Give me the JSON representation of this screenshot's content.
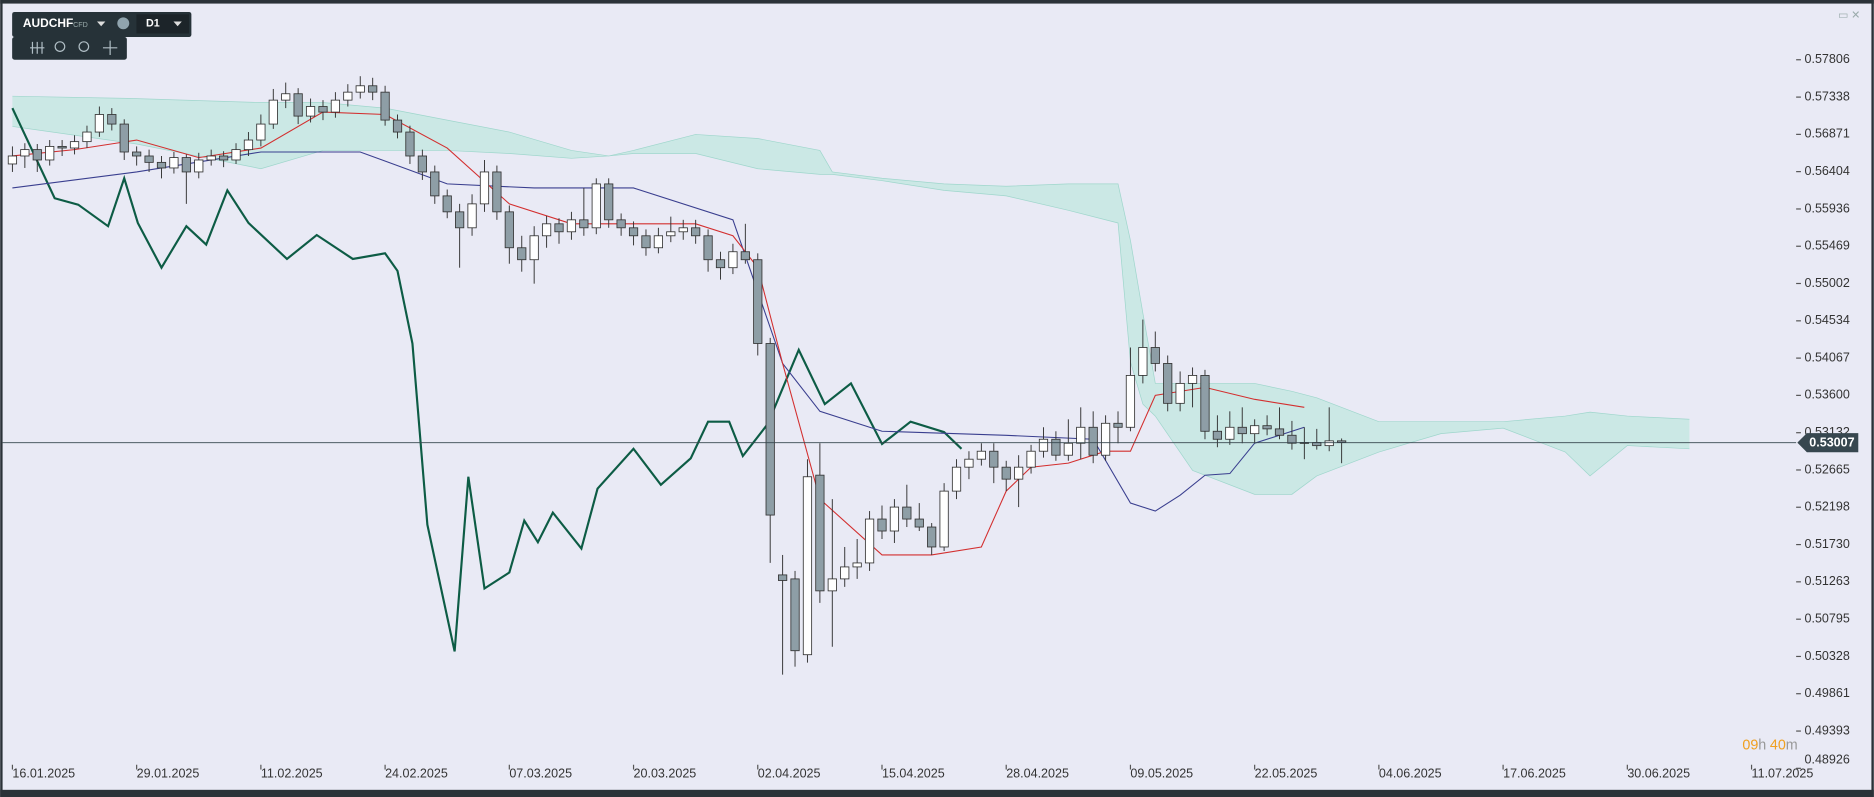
{
  "toolbar": {
    "symbol": "AUDCHF",
    "market": "CFD",
    "timeframe": "D1"
  },
  "timer": {
    "hours": "09",
    "hours_unit": "h",
    "minutes": "40",
    "minutes_unit": "m"
  },
  "chart_data": {
    "type": "candlestick",
    "up_color": "#ffffff",
    "down_color": "#8e9ea6",
    "xlim": [
      -0.6,
      143.3
    ],
    "xticks": [
      {
        "value": 0,
        "label": "16.01.2025"
      },
      {
        "value": 10,
        "label": "29.01.2025"
      },
      {
        "value": 20,
        "label": "11.02.2025"
      },
      {
        "value": 30,
        "label": "24.02.2025"
      },
      {
        "value": 40,
        "label": "07.03.2025"
      },
      {
        "value": 50,
        "label": "20.03.2025"
      },
      {
        "value": 60,
        "label": "02.04.2025"
      },
      {
        "value": 70,
        "label": "15.04.2025"
      },
      {
        "value": 80,
        "label": "28.04.2025"
      },
      {
        "value": 90,
        "label": "09.05.2025"
      },
      {
        "value": 100,
        "label": "22.05.2025"
      },
      {
        "value": 110,
        "label": "04.06.2025"
      },
      {
        "value": 120,
        "label": "17.06.2025"
      },
      {
        "value": 130,
        "label": "30.06.2025"
      },
      {
        "value": 140,
        "label": "11.07.2025"
      }
    ],
    "ylim": [
      0.48926,
      0.58495
    ],
    "yticks": [
      0.57806,
      0.57338,
      0.56871,
      0.56404,
      0.55936,
      0.55469,
      0.55002,
      0.54534,
      0.54067,
      {
        "value": 0.536,
        "label": "0.53600"
      },
      0.53132,
      0.52665,
      0.52198,
      {
        "value": 0.5173,
        "label": "0.51730"
      },
      0.51263,
      0.50795,
      0.50328,
      0.49861,
      0.49393,
      0.48926
    ],
    "last_price": 0.53007,
    "ohlc": [
      [
        0.565,
        0.5672,
        0.564,
        0.566
      ],
      [
        0.566,
        0.5676,
        0.5645,
        0.5668
      ],
      [
        0.5668,
        0.5675,
        0.564,
        0.5655
      ],
      [
        0.5655,
        0.568,
        0.5648,
        0.5672
      ],
      [
        0.5672,
        0.568,
        0.566,
        0.567
      ],
      [
        0.567,
        0.5686,
        0.5662,
        0.5678
      ],
      [
        0.5678,
        0.5698,
        0.567,
        0.569
      ],
      [
        0.569,
        0.5722,
        0.5684,
        0.5712
      ],
      [
        0.5712,
        0.572,
        0.5692,
        0.57
      ],
      [
        0.57,
        0.5706,
        0.5655,
        0.5665
      ],
      [
        0.5665,
        0.5672,
        0.5648,
        0.566
      ],
      [
        0.566,
        0.5668,
        0.564,
        0.5652
      ],
      [
        0.5652,
        0.566,
        0.5632,
        0.5645
      ],
      [
        0.5645,
        0.5665,
        0.5638,
        0.5658
      ],
      [
        0.5658,
        0.5662,
        0.56,
        0.564
      ],
      [
        0.564,
        0.5664,
        0.5632,
        0.5655
      ],
      [
        0.5655,
        0.5668,
        0.5648,
        0.566
      ],
      [
        0.566,
        0.5666,
        0.5646,
        0.5655
      ],
      [
        0.5655,
        0.5676,
        0.565,
        0.5668
      ],
      [
        0.5668,
        0.569,
        0.566,
        0.568
      ],
      [
        0.568,
        0.5712,
        0.5672,
        0.57
      ],
      [
        0.57,
        0.5744,
        0.5694,
        0.573
      ],
      [
        0.573,
        0.5752,
        0.572,
        0.5738
      ],
      [
        0.5738,
        0.5745,
        0.57,
        0.571
      ],
      [
        0.571,
        0.5732,
        0.5702,
        0.5722
      ],
      [
        0.5722,
        0.573,
        0.5705,
        0.5715
      ],
      [
        0.5715,
        0.574,
        0.5708,
        0.573
      ],
      [
        0.573,
        0.575,
        0.5722,
        0.574
      ],
      [
        0.574,
        0.576,
        0.5732,
        0.5748
      ],
      [
        0.5748,
        0.5758,
        0.573,
        0.574
      ],
      [
        0.574,
        0.5748,
        0.5698,
        0.5705
      ],
      [
        0.5705,
        0.5712,
        0.5682,
        0.569
      ],
      [
        0.569,
        0.5698,
        0.565,
        0.566
      ],
      [
        0.566,
        0.5668,
        0.563,
        0.564
      ],
      [
        0.564,
        0.5648,
        0.56,
        0.561
      ],
      [
        0.561,
        0.5618,
        0.5582,
        0.559
      ],
      [
        0.559,
        0.56,
        0.552,
        0.557
      ],
      [
        0.557,
        0.5612,
        0.556,
        0.56
      ],
      [
        0.56,
        0.5655,
        0.559,
        0.564
      ],
      [
        0.564,
        0.5648,
        0.558,
        0.559
      ],
      [
        0.559,
        0.5598,
        0.5525,
        0.5545
      ],
      [
        0.5545,
        0.556,
        0.5515,
        0.553
      ],
      [
        0.553,
        0.5572,
        0.55,
        0.556
      ],
      [
        0.556,
        0.5585,
        0.5545,
        0.5575
      ],
      [
        0.5575,
        0.5582,
        0.555,
        0.5565
      ],
      [
        0.5565,
        0.559,
        0.5555,
        0.558
      ],
      [
        0.558,
        0.562,
        0.556,
        0.557
      ],
      [
        0.557,
        0.5632,
        0.5562,
        0.5625
      ],
      [
        0.5625,
        0.5632,
        0.557,
        0.558
      ],
      [
        0.558,
        0.5588,
        0.556,
        0.557
      ],
      [
        0.557,
        0.5578,
        0.5548,
        0.556
      ],
      [
        0.556,
        0.5568,
        0.5535,
        0.5545
      ],
      [
        0.5545,
        0.557,
        0.5538,
        0.556
      ],
      [
        0.556,
        0.5584,
        0.5552,
        0.5565
      ],
      [
        0.5565,
        0.558,
        0.5555,
        0.557
      ],
      [
        0.557,
        0.558,
        0.555,
        0.556
      ],
      [
        0.556,
        0.5568,
        0.5515,
        0.553
      ],
      [
        0.553,
        0.554,
        0.5505,
        0.552
      ],
      [
        0.552,
        0.555,
        0.5512,
        0.554
      ],
      [
        0.554,
        0.5575,
        0.5525,
        0.553
      ],
      [
        0.553,
        0.5538,
        0.541,
        0.5425
      ],
      [
        0.5425,
        0.5432,
        0.515,
        0.521
      ],
      [
        0.5135,
        0.516,
        0.501,
        0.5128
      ],
      [
        0.513,
        0.514,
        0.502,
        0.504
      ],
      [
        0.5035,
        0.528,
        0.5025,
        0.5258
      ],
      [
        0.526,
        0.53,
        0.51,
        0.5115
      ],
      [
        0.5115,
        0.523,
        0.5045,
        0.513
      ],
      [
        0.513,
        0.517,
        0.512,
        0.5145
      ],
      [
        0.5145,
        0.518,
        0.513,
        0.515
      ],
      [
        0.515,
        0.5215,
        0.514,
        0.5205
      ],
      [
        0.5205,
        0.5222,
        0.518,
        0.519
      ],
      [
        0.519,
        0.523,
        0.5175,
        0.522
      ],
      [
        0.522,
        0.5248,
        0.5195,
        0.5205
      ],
      [
        0.5205,
        0.5225,
        0.519,
        0.5195
      ],
      [
        0.5195,
        0.52,
        0.516,
        0.517
      ],
      [
        0.517,
        0.525,
        0.5165,
        0.524
      ],
      [
        0.524,
        0.528,
        0.523,
        0.527
      ],
      [
        0.527,
        0.529,
        0.5255,
        0.528
      ],
      [
        0.528,
        0.53,
        0.5272,
        0.529
      ],
      [
        0.529,
        0.53,
        0.525,
        0.527
      ],
      [
        0.527,
        0.5278,
        0.524,
        0.5255
      ],
      [
        0.5255,
        0.5285,
        0.522,
        0.527
      ],
      [
        0.527,
        0.5298,
        0.5262,
        0.529
      ],
      [
        0.529,
        0.532,
        0.5282,
        0.5305
      ],
      [
        0.5305,
        0.5315,
        0.5278,
        0.5285
      ],
      [
        0.5285,
        0.533,
        0.5278,
        0.53
      ],
      [
        0.53,
        0.5345,
        0.528,
        0.532
      ],
      [
        0.532,
        0.534,
        0.5275,
        0.5285
      ],
      [
        0.5285,
        0.5335,
        0.5278,
        0.5325
      ],
      [
        0.5325,
        0.534,
        0.53,
        0.532
      ],
      [
        0.532,
        0.542,
        0.5315,
        0.5385
      ],
      [
        0.5385,
        0.5455,
        0.5375,
        0.542
      ],
      [
        0.542,
        0.544,
        0.539,
        0.54
      ],
      [
        0.54,
        0.541,
        0.534,
        0.535
      ],
      [
        0.535,
        0.539,
        0.534,
        0.5375
      ],
      [
        0.5375,
        0.5395,
        0.5345,
        0.5385
      ],
      [
        0.5385,
        0.5392,
        0.5305,
        0.5315
      ],
      [
        0.5315,
        0.5335,
        0.5295,
        0.5305
      ],
      [
        0.5305,
        0.534,
        0.5298,
        0.532
      ],
      [
        0.532,
        0.5345,
        0.53,
        0.5312
      ],
      [
        0.5312,
        0.533,
        0.53,
        0.5322
      ],
      [
        0.5322,
        0.5335,
        0.531,
        0.5318
      ],
      [
        0.5318,
        0.5345,
        0.5305,
        0.531
      ],
      [
        0.531,
        0.5328,
        0.5292,
        0.53
      ],
      [
        0.53,
        0.532,
        0.528,
        0.5301
      ],
      [
        0.5301,
        0.5318,
        0.5292,
        0.5297
      ],
      [
        0.5297,
        0.5345,
        0.529,
        0.5303
      ],
      [
        0.5303,
        0.5306,
        0.5275,
        0.5301
      ]
    ],
    "cloud": {
      "color": "#c5e8e2",
      "edge_color": "#9fd6cc",
      "x": [
        0,
        10,
        20,
        25,
        30,
        35,
        40,
        45,
        48,
        50,
        55,
        60,
        65,
        66,
        70,
        75,
        80,
        85,
        89,
        90,
        91,
        92,
        95,
        100,
        103,
        105,
        110,
        115,
        120,
        125,
        127,
        130,
        135
      ],
      "upper": [
        0.5735,
        0.5732,
        0.5727,
        0.5727,
        0.572,
        0.5705,
        0.569,
        0.5667,
        0.566,
        0.5667,
        0.5687,
        0.5682,
        0.5667,
        0.564,
        0.5632,
        0.5625,
        0.5622,
        0.5625,
        0.5625,
        0.5554,
        0.5463,
        0.5375,
        0.5375,
        0.5375,
        0.5365,
        0.5357,
        0.5327,
        0.5327,
        0.5327,
        0.5334,
        0.5339,
        0.5334,
        0.533
      ],
      "lower": [
        0.5697,
        0.5675,
        0.5644,
        0.5667,
        0.5667,
        0.5667,
        0.5663,
        0.5657,
        0.566,
        0.5663,
        0.5663,
        0.5644,
        0.5637,
        0.5637,
        0.5629,
        0.5617,
        0.561,
        0.5592,
        0.5576,
        0.5402,
        0.5349,
        0.5334,
        0.5266,
        0.5236,
        0.5236,
        0.5259,
        0.5289,
        0.5312,
        0.5319,
        0.5289,
        0.5259,
        0.5297,
        0.5293
      ]
    },
    "tenkan": {
      "color": "#d32f2f",
      "x": [
        0,
        5,
        10,
        15,
        20,
        25,
        30,
        35,
        40,
        45,
        50,
        55,
        58,
        60,
        62,
        65,
        70,
        74,
        78,
        80,
        82,
        85,
        88,
        90,
        92,
        96,
        100,
        104
      ],
      "values": [
        0.566,
        0.5668,
        0.568,
        0.5658,
        0.567,
        0.5715,
        0.5712,
        0.567,
        0.56,
        0.5575,
        0.5575,
        0.5575,
        0.556,
        0.552,
        0.54,
        0.523,
        0.516,
        0.516,
        0.517,
        0.524,
        0.527,
        0.5275,
        0.529,
        0.529,
        0.536,
        0.537,
        0.5355,
        0.5345
      ]
    },
    "kijun": {
      "color": "#3a3f8f",
      "x": [
        0,
        10,
        20,
        28,
        35,
        42,
        50,
        58,
        62,
        65,
        70,
        80,
        87,
        90,
        92,
        94,
        96,
        98,
        100,
        104
      ],
      "values": [
        0.562,
        0.564,
        0.5665,
        0.5665,
        0.5625,
        0.562,
        0.562,
        0.558,
        0.54,
        0.534,
        0.5315,
        0.531,
        0.5305,
        0.5225,
        0.5215,
        0.5235,
        0.526,
        0.5262,
        0.53,
        0.532
      ]
    },
    "chikou": {
      "color": "#0d5c45",
      "x": [
        0,
        3.4,
        5.3,
        7.7,
        9,
        10.1,
        12,
        14,
        15.6,
        17.3,
        19,
        22.1,
        24.5,
        27.4,
        30,
        31,
        32.2,
        33.4,
        35.6,
        36.7,
        38,
        40,
        41.2,
        42.3,
        43.5,
        45.8,
        47.1,
        50,
        52.2,
        54.6,
        56,
        57.7,
        58.8,
        60.8,
        63.3,
        65.4,
        67.5,
        70,
        72.3,
        75,
        76.4
      ],
      "values": [
        0.572,
        0.5607,
        0.5599,
        0.5572,
        0.5632,
        0.5576,
        0.552,
        0.5572,
        0.5549,
        0.5617,
        0.5576,
        0.5531,
        0.5561,
        0.5531,
        0.5538,
        0.5516,
        0.5425,
        0.5198,
        0.5039,
        0.5258,
        0.5118,
        0.5138,
        0.5203,
        0.5176,
        0.5213,
        0.5168,
        0.5243,
        0.5293,
        0.5248,
        0.5281,
        0.5327,
        0.5327,
        0.5284,
        0.5324,
        0.5417,
        0.5349,
        0.5375,
        0.5299,
        0.5327,
        0.5314,
        0.5293
      ]
    }
  }
}
